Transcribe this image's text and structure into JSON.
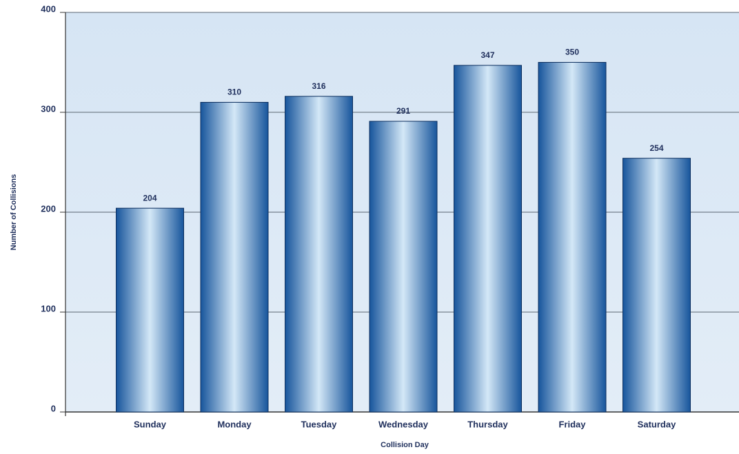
{
  "chart_data": {
    "type": "bar",
    "x_label": "Collision Day",
    "y_label": "Number of Collisions",
    "categories": [
      "Sunday",
      "Monday",
      "Tuesday",
      "Wednesday",
      "Thursday",
      "Friday",
      "Saturday"
    ],
    "values": [
      204,
      310,
      316,
      291,
      347,
      350,
      254
    ],
    "color": "#1a62ad",
    "ylim": [
      0,
      400
    ],
    "yticks": [
      0,
      100,
      200,
      300,
      400
    ],
    "grid": true
  }
}
